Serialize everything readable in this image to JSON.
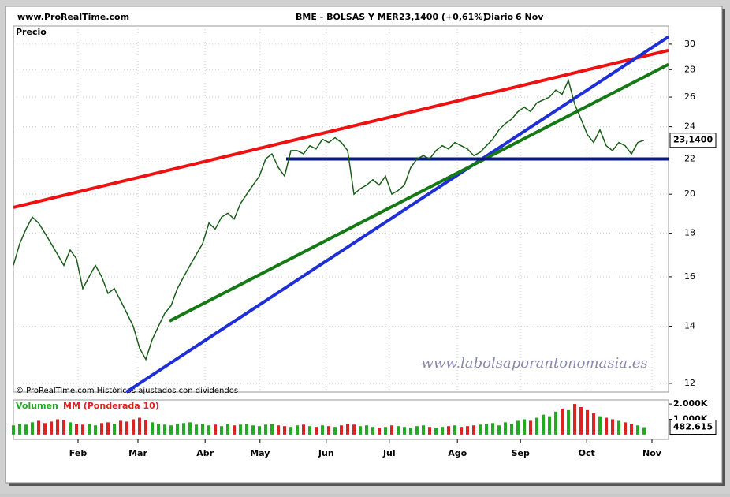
{
  "chart_data": {
    "type": "ohlc-line",
    "site": "www.ProRealTime.com",
    "symbol": "BME - BOLSAS Y MER",
    "quote": "23,1400 (+0,61%)",
    "period": "Diario",
    "date": "6 Nov",
    "panel_title": "Precio",
    "copyright": "© ProRealTime.com Históricos ajustados con dividendos",
    "watermark": "www.labolsaporantonomasia.es",
    "log_scale": true,
    "ylim": [
      11.72,
      31.5
    ],
    "yticks": [
      12,
      14,
      16,
      18,
      20,
      22,
      24,
      26,
      28,
      30
    ],
    "xlim": [
      0,
      103.875
    ],
    "xticks": [
      {
        "value": 10.25,
        "label": "Feb"
      },
      {
        "value": 19.75,
        "label": "Mar"
      },
      {
        "value": 30.4,
        "label": "Abr"
      },
      {
        "value": 39.1,
        "label": "May"
      },
      {
        "value": 49.6,
        "label": "Jun"
      },
      {
        "value": 59.6,
        "label": "Jul"
      },
      {
        "value": 70.4,
        "label": "Ago"
      },
      {
        "value": 80.4,
        "label": "Sep"
      },
      {
        "value": 90.9,
        "label": "Oct"
      },
      {
        "value": 101.25,
        "label": "Nov"
      }
    ],
    "price_color": "#1a5e1a",
    "values": [
      16.5,
      17.5,
      18.2,
      18.8,
      18.5,
      18.0,
      17.5,
      17.0,
      16.5,
      17.2,
      16.8,
      15.5,
      16.0,
      16.5,
      16.0,
      15.3,
      15.5,
      15.0,
      14.5,
      14.0,
      13.2,
      12.8,
      13.5,
      14.0,
      14.5,
      14.8,
      15.5,
      16.0,
      16.5,
      17.0,
      17.5,
      18.5,
      18.2,
      18.8,
      19.0,
      18.7,
      19.5,
      20.0,
      20.5,
      21.0,
      22.0,
      22.3,
      21.5,
      21.0,
      22.5,
      22.5,
      22.3,
      22.8,
      22.6,
      23.2,
      23.0,
      23.3,
      23.0,
      22.5,
      20.0,
      20.3,
      20.5,
      20.8,
      20.5,
      21.0,
      20.0,
      20.2,
      20.5,
      21.5,
      22.0,
      22.2,
      22.0,
      22.5,
      22.8,
      22.6,
      23.0,
      22.8,
      22.6,
      22.2,
      22.4,
      22.8,
      23.2,
      23.8,
      24.2,
      24.5,
      25.0,
      25.3,
      25.0,
      25.6,
      25.8,
      26.0,
      26.5,
      26.2,
      27.2,
      25.5,
      24.5,
      23.5,
      23.0,
      23.8,
      22.8,
      22.5,
      23.0,
      22.8,
      22.3,
      23.0,
      23.14
    ],
    "last_price": {
      "value": 23.14,
      "label": "23,1400"
    },
    "lines": [
      {
        "color": "#ee1111",
        "x": [
          0,
          103.875
        ],
        "y": [
          19.3,
          29.5
        ]
      },
      {
        "color": "#1f2fd6",
        "x": [
          17.9,
          103.875
        ],
        "y": [
          11.72,
          30.6
        ]
      },
      {
        "color": "#157a15",
        "x": [
          24.75,
          103.875
        ],
        "y": [
          14.2,
          28.4
        ]
      },
      {
        "color": "#0a1a80",
        "x": [
          43.25,
          103.875
        ],
        "y": [
          22.0,
          22.0
        ]
      }
    ],
    "volume": {
      "title": "Volumen",
      "ma_title": "MM (Ponderada 10)",
      "ylim": [
        -316,
        2263
      ],
      "yticks": [
        {
          "value": 2000,
          "label": "2.000K"
        },
        {
          "value": 1000,
          "label": "1.000K"
        }
      ],
      "up_color": "#22aa22",
      "down_color": "#dd2222",
      "values": [
        600,
        700,
        650,
        800,
        900,
        750,
        850,
        1000,
        950,
        800,
        700,
        650,
        700,
        600,
        750,
        800,
        700,
        900,
        850,
        1000,
        1100,
        950,
        800,
        700,
        650,
        600,
        700,
        750,
        800,
        650,
        700,
        600,
        650,
        550,
        700,
        600,
        650,
        700,
        600,
        550,
        650,
        700,
        600,
        550,
        500,
        600,
        650,
        550,
        500,
        600,
        550,
        500,
        600,
        700,
        650,
        550,
        600,
        500,
        450,
        500,
        600,
        550,
        500,
        450,
        550,
        600,
        500,
        450,
        500,
        550,
        600,
        500,
        550,
        600,
        650,
        700,
        750,
        600,
        800,
        700,
        900,
        1000,
        900,
        1100,
        1300,
        1200,
        1500,
        1700,
        1600,
        2000,
        1800,
        1600,
        1400,
        1200,
        1100,
        1000,
        900,
        800,
        700,
        600,
        482.615
      ],
      "last": {
        "value": 482.615,
        "label": "482.615"
      }
    }
  }
}
